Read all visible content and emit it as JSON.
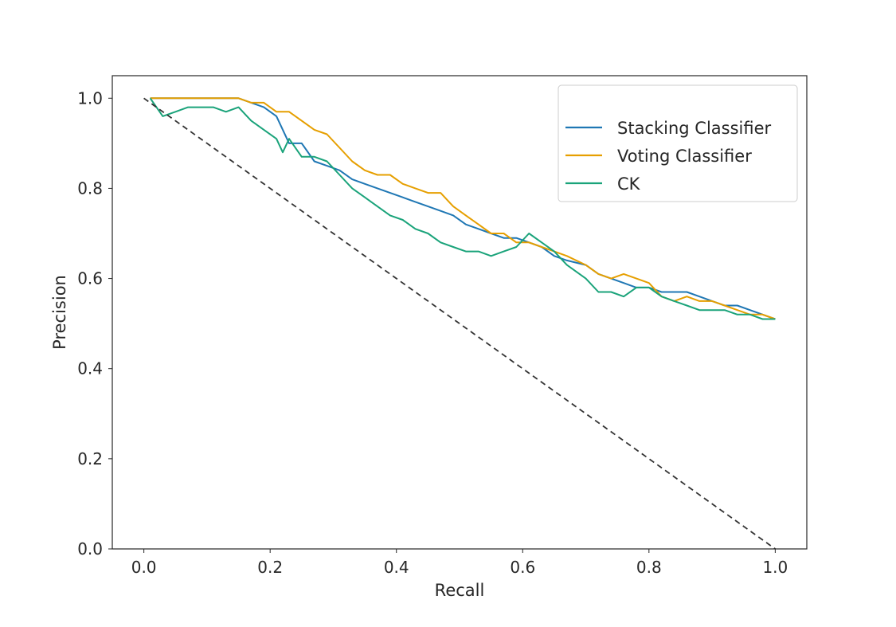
{
  "chart_data": {
    "type": "line",
    "xlabel": "Recall",
    "ylabel": "Precision",
    "xlim": [
      -0.05,
      1.05
    ],
    "ylim": [
      0.0,
      1.05
    ],
    "xticks": [
      "0.0",
      "0.2",
      "0.4",
      "0.6",
      "0.8",
      "1.0"
    ],
    "yticks": [
      "0.0",
      "0.2",
      "0.4",
      "0.6",
      "0.8",
      "1.0"
    ],
    "grid": false,
    "legend_position": "top-right",
    "series": [
      {
        "name": "Stacking Classifier",
        "color": "#1f77b4",
        "style": "solid",
        "x": [
          0.01,
          0.05,
          0.1,
          0.15,
          0.17,
          0.19,
          0.21,
          0.23,
          0.25,
          0.27,
          0.29,
          0.31,
          0.33,
          0.35,
          0.37,
          0.39,
          0.41,
          0.43,
          0.45,
          0.47,
          0.49,
          0.51,
          0.53,
          0.55,
          0.57,
          0.59,
          0.61,
          0.63,
          0.65,
          0.67,
          0.7,
          0.72,
          0.74,
          0.76,
          0.78,
          0.8,
          0.82,
          0.84,
          0.86,
          0.88,
          0.9,
          0.92,
          0.94,
          0.96,
          0.98,
          1.0
        ],
        "y": [
          1.0,
          1.0,
          1.0,
          1.0,
          0.99,
          0.98,
          0.96,
          0.9,
          0.9,
          0.86,
          0.85,
          0.84,
          0.82,
          0.81,
          0.8,
          0.79,
          0.78,
          0.77,
          0.76,
          0.75,
          0.74,
          0.72,
          0.71,
          0.7,
          0.69,
          0.69,
          0.68,
          0.67,
          0.65,
          0.64,
          0.63,
          0.61,
          0.6,
          0.59,
          0.58,
          0.58,
          0.57,
          0.57,
          0.57,
          0.56,
          0.55,
          0.54,
          0.54,
          0.53,
          0.52,
          0.51
        ]
      },
      {
        "name": "Voting Classifier",
        "color": "#e69f00",
        "style": "solid",
        "x": [
          0.01,
          0.05,
          0.1,
          0.15,
          0.17,
          0.19,
          0.21,
          0.23,
          0.25,
          0.27,
          0.29,
          0.31,
          0.33,
          0.35,
          0.37,
          0.39,
          0.41,
          0.43,
          0.45,
          0.47,
          0.49,
          0.51,
          0.53,
          0.55,
          0.57,
          0.59,
          0.61,
          0.63,
          0.65,
          0.67,
          0.7,
          0.72,
          0.74,
          0.76,
          0.78,
          0.8,
          0.82,
          0.84,
          0.86,
          0.88,
          0.9,
          0.92,
          0.94,
          0.96,
          0.98,
          1.0
        ],
        "y": [
          1.0,
          1.0,
          1.0,
          1.0,
          0.99,
          0.99,
          0.97,
          0.97,
          0.95,
          0.93,
          0.92,
          0.89,
          0.86,
          0.84,
          0.83,
          0.83,
          0.81,
          0.8,
          0.79,
          0.79,
          0.76,
          0.74,
          0.72,
          0.7,
          0.7,
          0.68,
          0.68,
          0.67,
          0.66,
          0.65,
          0.63,
          0.61,
          0.6,
          0.61,
          0.6,
          0.59,
          0.56,
          0.55,
          0.56,
          0.55,
          0.55,
          0.54,
          0.53,
          0.52,
          0.52,
          0.51
        ]
      },
      {
        "name": "CK",
        "color": "#1aa37a",
        "style": "solid",
        "x": [
          0.01,
          0.03,
          0.05,
          0.07,
          0.09,
          0.11,
          0.13,
          0.15,
          0.17,
          0.19,
          0.21,
          0.22,
          0.23,
          0.25,
          0.27,
          0.29,
          0.31,
          0.33,
          0.35,
          0.37,
          0.39,
          0.41,
          0.43,
          0.45,
          0.47,
          0.49,
          0.51,
          0.53,
          0.55,
          0.57,
          0.59,
          0.61,
          0.63,
          0.65,
          0.67,
          0.7,
          0.72,
          0.74,
          0.76,
          0.78,
          0.8,
          0.82,
          0.84,
          0.86,
          0.88,
          0.9,
          0.92,
          0.94,
          0.96,
          0.98,
          1.0
        ],
        "y": [
          1.0,
          0.96,
          0.97,
          0.98,
          0.98,
          0.98,
          0.97,
          0.98,
          0.95,
          0.93,
          0.91,
          0.88,
          0.91,
          0.87,
          0.87,
          0.86,
          0.83,
          0.8,
          0.78,
          0.76,
          0.74,
          0.73,
          0.71,
          0.7,
          0.68,
          0.67,
          0.66,
          0.66,
          0.65,
          0.66,
          0.67,
          0.7,
          0.68,
          0.66,
          0.63,
          0.6,
          0.57,
          0.57,
          0.56,
          0.58,
          0.58,
          0.56,
          0.55,
          0.54,
          0.53,
          0.53,
          0.53,
          0.52,
          0.52,
          0.51,
          0.51
        ]
      },
      {
        "name": "",
        "color": "#333333",
        "style": "dashed",
        "x": [
          0.0,
          1.0
        ],
        "y": [
          1.0,
          0.0
        ]
      }
    ]
  }
}
